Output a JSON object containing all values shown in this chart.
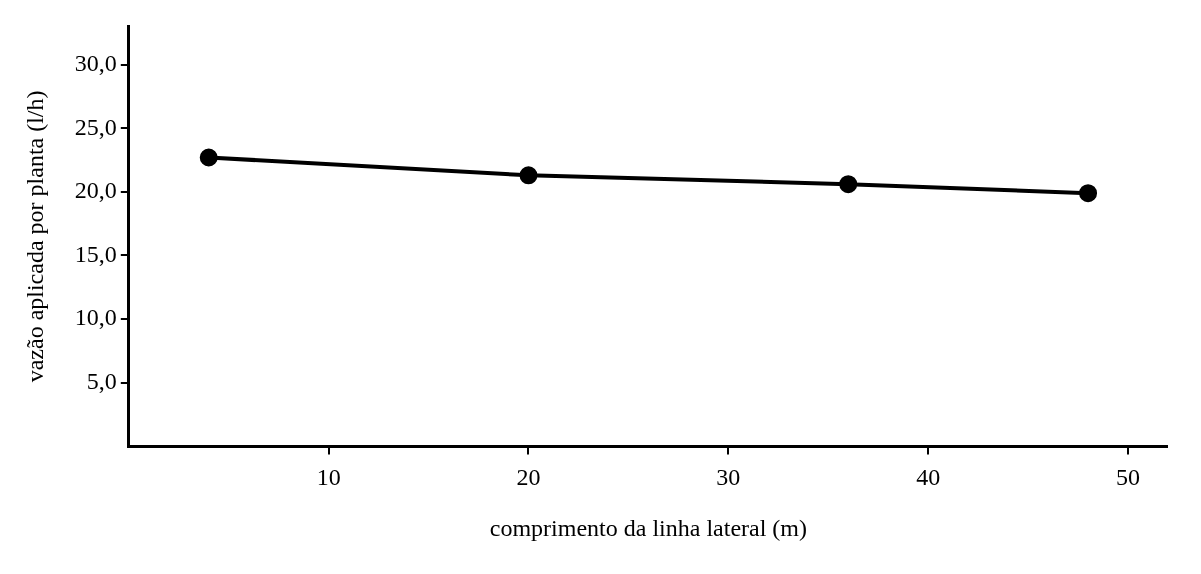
{
  "chart_data": {
    "type": "line",
    "xlabel": "comprimento da linha lateral (m)",
    "ylabel": "vazão aplicada por planta (l/h)",
    "x": [
      4,
      20,
      36,
      48
    ],
    "series": [
      {
        "color": "#000000",
        "values": [
          22.7,
          21.3,
          20.6,
          19.9
        ]
      }
    ],
    "xlim": [
      0,
      52
    ],
    "xticks": [
      10,
      20,
      30,
      40,
      50
    ],
    "ylim": [
      0,
      33
    ],
    "yticks": [
      {
        "value": 5,
        "label": "5,0"
      },
      {
        "value": 10,
        "label": "10,0"
      },
      {
        "value": 15,
        "label": "15,0"
      },
      {
        "value": 20,
        "label": "20,0"
      },
      {
        "value": 25,
        "label": "25,0"
      },
      {
        "value": 30,
        "label": "30,0"
      }
    ],
    "grid": false,
    "legend": false,
    "marker": "circle",
    "line_style": "solid"
  }
}
